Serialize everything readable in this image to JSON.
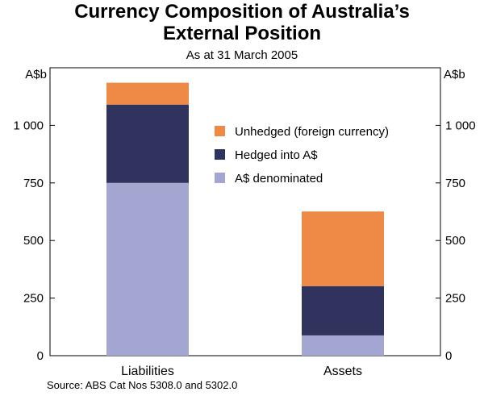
{
  "chart_data": {
    "type": "bar",
    "stacked": true,
    "title": "Currency Composition of Australia’s External Position",
    "title_lines": [
      "Currency Composition of Australia’s",
      "External Position"
    ],
    "subtitle": "As at 31 March 2005",
    "y_unit_left": "A$b",
    "y_unit_right": "A$b",
    "ylim": [
      0,
      1250
    ],
    "yticks": [
      0,
      250,
      500,
      750,
      1000
    ],
    "ytick_labels": [
      "0",
      "250",
      "500",
      "750",
      "1 000"
    ],
    "categories": [
      "Liabilities",
      "Assets"
    ],
    "series": [
      {
        "name": "A$ denominated",
        "color": "#a2a6d0",
        "values": [
          750,
          88
        ]
      },
      {
        "name": "Hedged into A$",
        "color": "#31335f",
        "values": [
          340,
          214
        ]
      },
      {
        "name": "Unhedged (foreign currency)",
        "color": "#ee8a45",
        "values": [
          95,
          324
        ]
      }
    ],
    "legend_order": [
      "Unhedged (foreign currency)",
      "Hedged into A$",
      "A$ denominated"
    ],
    "legend_position": "upper-right inside plot",
    "grid": false,
    "source": "Source: ABS Cat Nos 5308.0 and 5302.0"
  }
}
